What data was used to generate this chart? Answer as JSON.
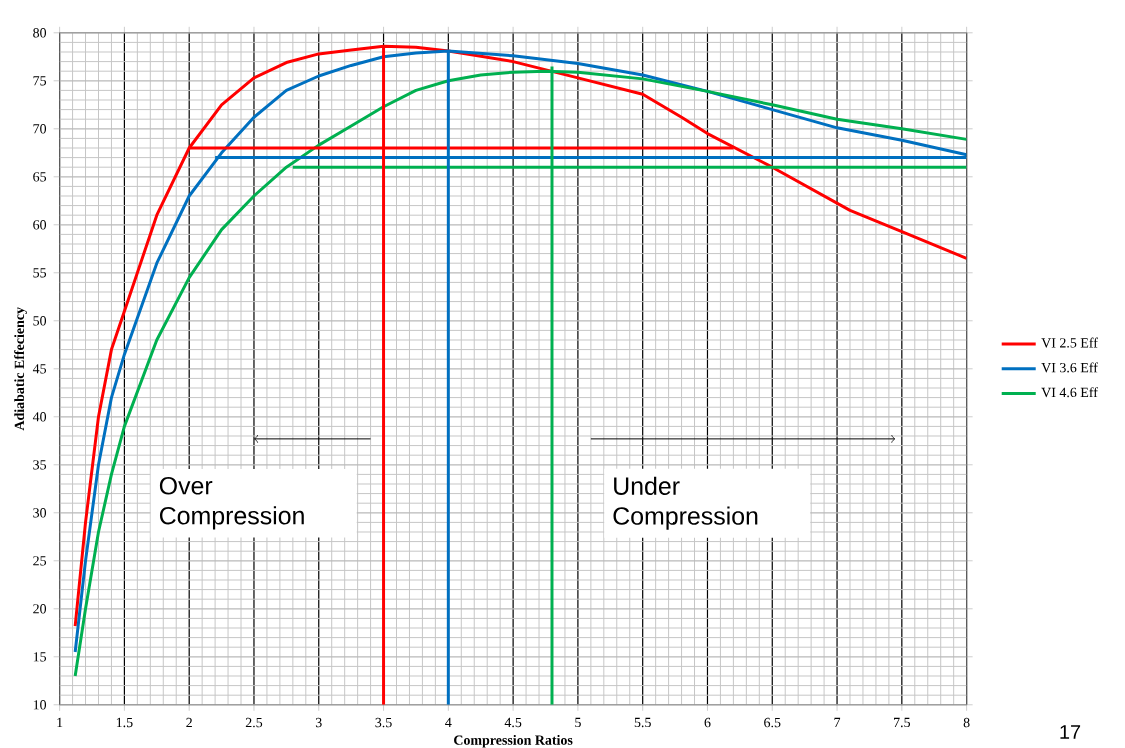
{
  "chart_data": {
    "type": "line",
    "xlabel": "Compression Ratios",
    "ylabel": "Adiabatic Effeciency",
    "xlim": [
      1,
      8
    ],
    "xticks": [
      1,
      1.5,
      2,
      2.5,
      3,
      3.5,
      4,
      4.5,
      5,
      5.5,
      6,
      6.5,
      7,
      7.5,
      8
    ],
    "ylim": [
      10,
      80
    ],
    "yticks": [
      10,
      15,
      20,
      25,
      30,
      35,
      40,
      45,
      50,
      55,
      60,
      65,
      70,
      75,
      80
    ],
    "grid": true,
    "legend": "right",
    "marker": "none",
    "line_style": "solid",
    "series": [
      {
        "name": "VI 2.5 Eff",
        "color": "#ff0000",
        "x": [
          1.12,
          1.2,
          1.3,
          1.4,
          1.5,
          1.75,
          2,
          2.25,
          2.5,
          2.75,
          3,
          3.25,
          3.5,
          3.75,
          4,
          4.5,
          5,
          5.5,
          5.8,
          6,
          6.5,
          7.1,
          7.5,
          8
        ],
        "values": [
          18.2,
          29,
          40,
          47,
          51,
          61,
          68,
          72.5,
          75.3,
          76.9,
          77.8,
          78.2,
          78.6,
          78.5,
          78.1,
          77,
          75.3,
          73.6,
          71.2,
          69.5,
          66,
          61.5,
          59.3,
          56.5
        ]
      },
      {
        "name": "VI 3.6 Eff",
        "color": "#0070c0",
        "x": [
          1.12,
          1.2,
          1.3,
          1.4,
          1.5,
          1.75,
          2,
          2.25,
          2.5,
          2.75,
          3,
          3.25,
          3.5,
          3.75,
          4,
          4.5,
          5,
          5.5,
          6,
          6.5,
          7,
          7.5,
          8
        ],
        "values": [
          15.5,
          25,
          35,
          42,
          46.5,
          56,
          63,
          67.5,
          71.2,
          74,
          75.5,
          76.6,
          77.5,
          77.9,
          78.1,
          77.6,
          76.8,
          75.6,
          73.9,
          72,
          70.1,
          68.8,
          67.3
        ]
      },
      {
        "name": "VI 4.6 Eff",
        "color": "#00b050",
        "x": [
          1.12,
          1.2,
          1.3,
          1.4,
          1.5,
          1.75,
          2,
          2.25,
          2.5,
          2.75,
          3,
          3.25,
          3.5,
          3.75,
          4,
          4.25,
          4.5,
          4.75,
          5,
          5.5,
          6,
          6.5,
          7,
          7.5,
          8
        ],
        "values": [
          13,
          20,
          28,
          34,
          39,
          48,
          54.5,
          59.5,
          63,
          66,
          68.3,
          70.3,
          72.3,
          74,
          75,
          75.6,
          75.9,
          76,
          75.9,
          75.2,
          73.9,
          72.5,
          71,
          70,
          68.9
        ]
      },
      {
        "color": "#ff0000",
        "x": [
          2,
          6.2
        ],
        "values": [
          68,
          68
        ]
      },
      {
        "color": "#0070c0",
        "x": [
          2.2,
          8
        ],
        "values": [
          67,
          67
        ]
      },
      {
        "color": "#00b050",
        "x": [
          2.8,
          8
        ],
        "values": [
          66,
          66
        ]
      },
      {
        "color": "#ff0000",
        "x": [
          3.5,
          3.5
        ],
        "values": [
          10,
          78.6
        ]
      },
      {
        "color": "#0070c0",
        "x": [
          4,
          4
        ],
        "values": [
          10,
          78.1
        ]
      },
      {
        "color": "#00b050",
        "x": [
          4.8,
          4.8
        ],
        "values": [
          10,
          76.5
        ]
      }
    ],
    "annotations": [
      "Over Compression",
      "Under Compression",
      "17"
    ]
  }
}
